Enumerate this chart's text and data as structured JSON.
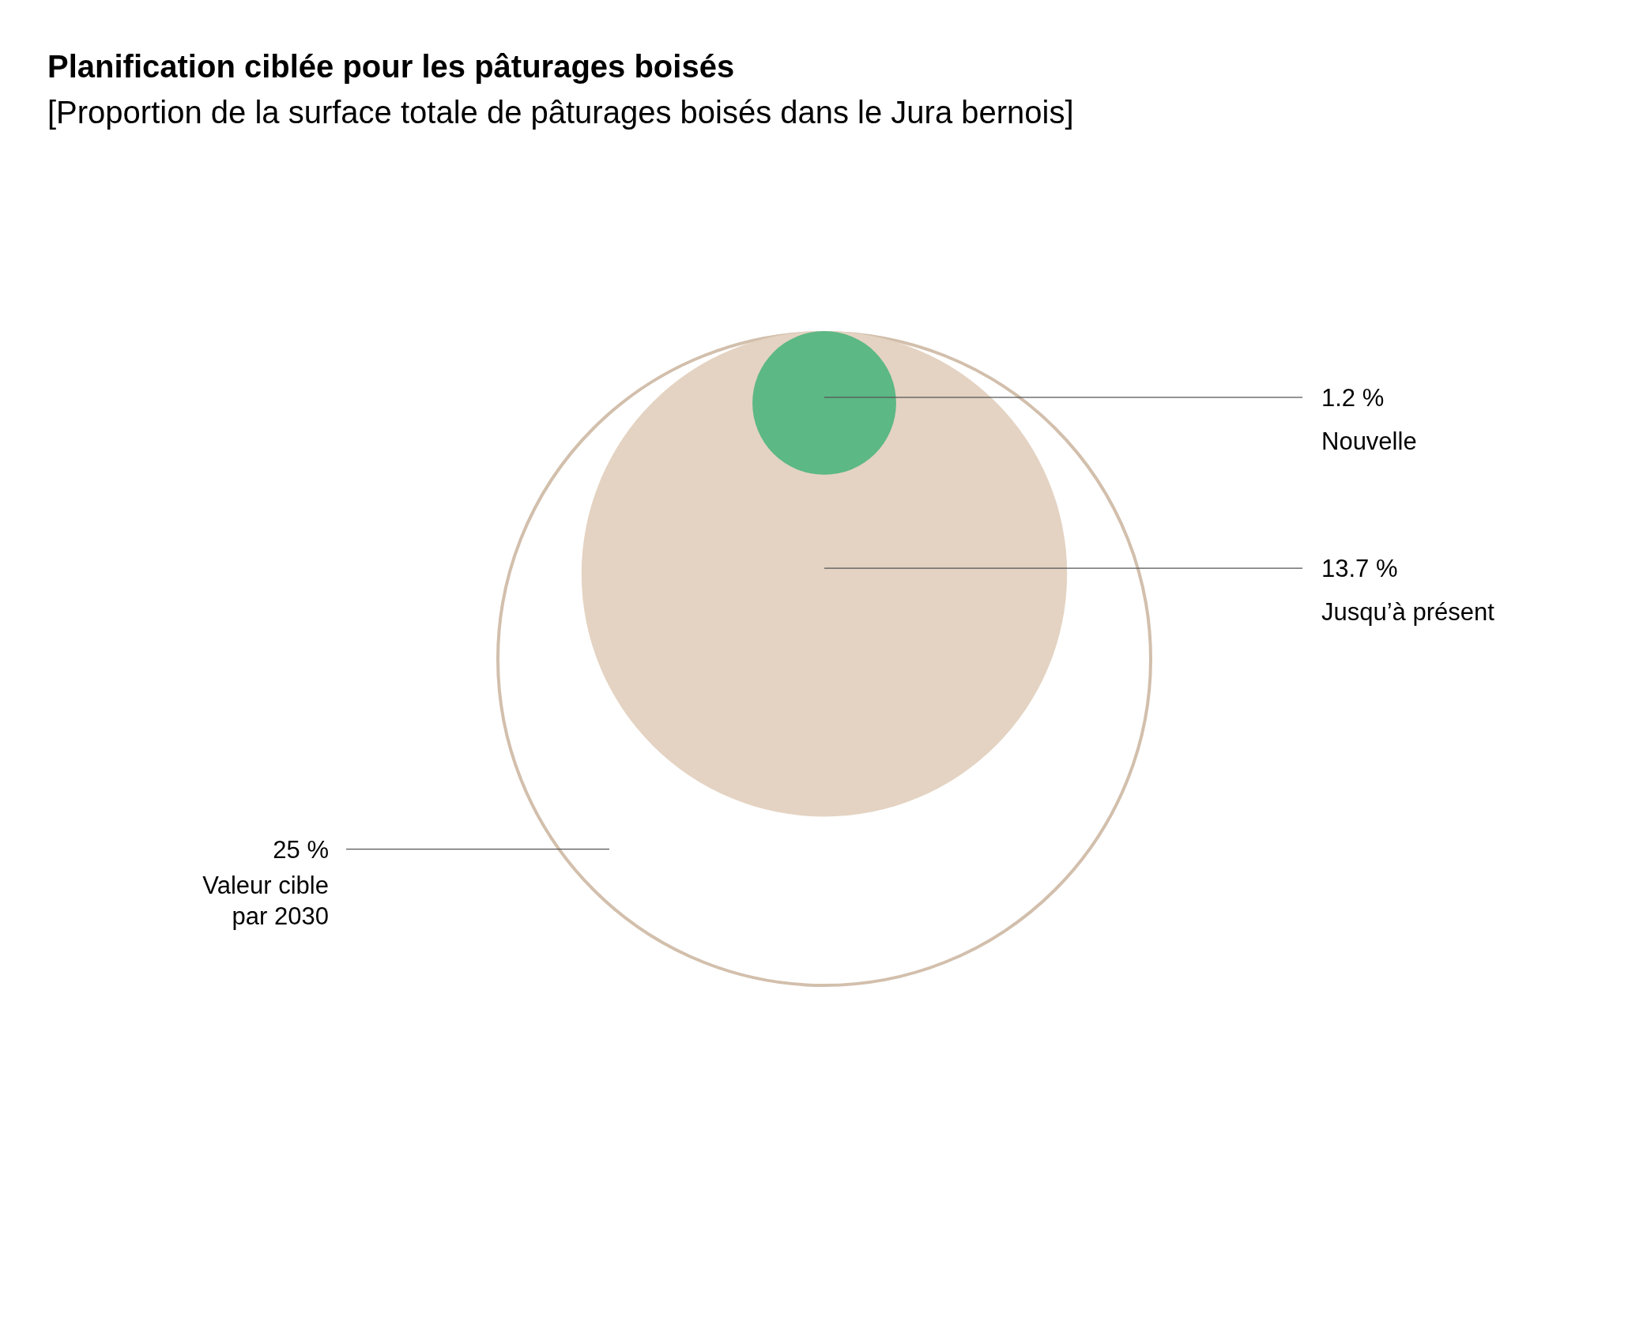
{
  "chart_data": {
    "type": "other",
    "title": "Planification ciblée pour les pâturages boisés",
    "subtitle": "[Proportion de la surface totale de pâturages boisés dans le Jura bernois]",
    "categories": [
      "Valeur cible\npar 2030",
      "Jusqu’à présent",
      "Nouvelle"
    ],
    "values": [
      25,
      13.7,
      1.2
    ],
    "value_labels": [
      "25 %",
      "13.7 %",
      "1.2 %"
    ],
    "colors": [
      "#d2bfac",
      "#e4d3c2",
      "#5cb884"
    ]
  }
}
